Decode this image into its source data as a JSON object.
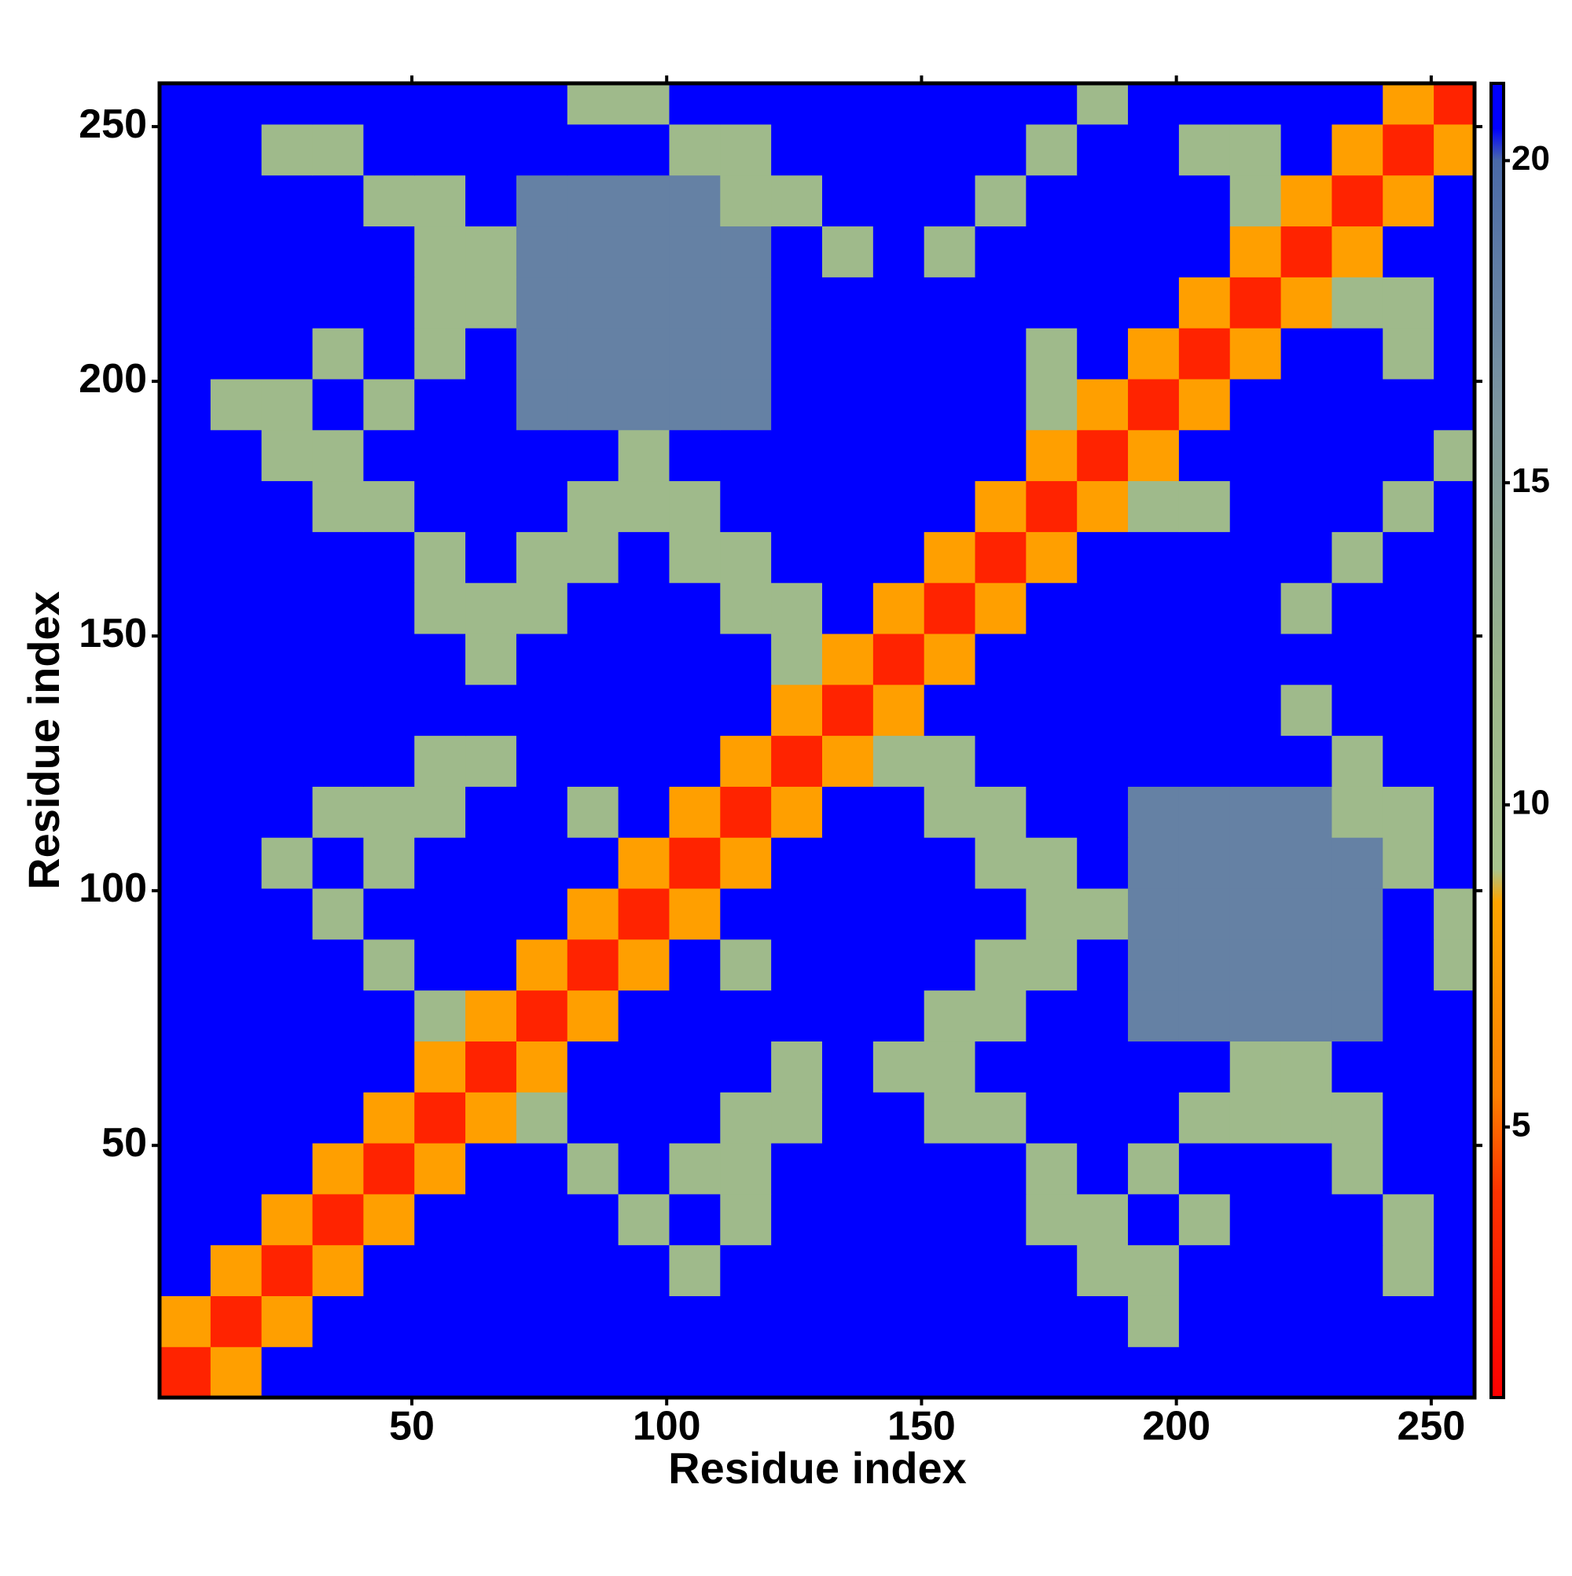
{
  "chart_data": {
    "type": "heatmap",
    "xlabel": "Residue index",
    "ylabel": "Residue index",
    "xbins": [
      0.5,
      10.5,
      20.5,
      30.5,
      40.5,
      50.5,
      60.5,
      70.5,
      80.5,
      90.5,
      100.5,
      110.5,
      120.5,
      130.5,
      140.5,
      150.5,
      160.5,
      170.5,
      180.5,
      190.5,
      200.5,
      210.5,
      220.5,
      230.5,
      240.5,
      250.5,
      258.5
    ],
    "ybins": [
      0.5,
      10.5,
      20.5,
      30.5,
      40.5,
      50.5,
      60.5,
      70.5,
      80.5,
      90.5,
      100.5,
      110.5,
      120.5,
      130.5,
      140.5,
      150.5,
      160.5,
      170.5,
      180.5,
      190.5,
      200.5,
      210.5,
      220.5,
      230.5,
      240.5,
      250.5,
      258.5
    ],
    "values": [
      [
        3,
        8,
        21,
        21,
        21,
        21,
        21,
        21,
        21,
        21,
        21,
        21,
        21,
        21,
        21,
        21,
        21,
        21,
        21,
        21,
        21,
        21,
        21,
        21,
        21,
        21
      ],
      [
        8,
        3,
        8,
        21,
        21,
        21,
        21,
        21,
        21,
        21,
        21,
        21,
        21,
        21,
        21,
        21,
        21,
        21,
        21,
        11,
        21,
        21,
        21,
        21,
        21,
        21
      ],
      [
        21,
        8,
        3,
        8,
        21,
        21,
        21,
        21,
        21,
        21,
        11,
        21,
        21,
        21,
        21,
        21,
        21,
        21,
        11,
        11,
        21,
        21,
        21,
        21,
        11,
        21
      ],
      [
        21,
        21,
        8,
        3,
        8,
        21,
        21,
        21,
        21,
        11,
        21,
        11,
        21,
        21,
        21,
        21,
        21,
        11,
        11,
        21,
        11,
        21,
        21,
        21,
        11,
        21
      ],
      [
        21,
        21,
        21,
        8,
        3,
        8,
        21,
        21,
        11,
        21,
        11,
        11,
        21,
        21,
        21,
        21,
        21,
        11,
        21,
        11,
        21,
        21,
        21,
        11,
        21,
        21
      ],
      [
        21,
        21,
        21,
        21,
        8,
        3,
        8,
        11,
        21,
        21,
        21,
        11,
        11,
        21,
        21,
        11,
        11,
        21,
        21,
        21,
        11,
        11,
        11,
        11,
        21,
        21
      ],
      [
        21,
        21,
        21,
        21,
        21,
        8,
        3,
        8,
        21,
        21,
        21,
        21,
        11,
        21,
        11,
        11,
        21,
        21,
        21,
        21,
        21,
        11,
        11,
        21,
        21,
        21
      ],
      [
        21,
        21,
        21,
        21,
        21,
        11,
        8,
        3,
        8,
        21,
        21,
        21,
        21,
        21,
        21,
        11,
        11,
        21,
        21,
        18,
        18,
        18,
        18,
        18,
        21,
        21
      ],
      [
        21,
        21,
        21,
        21,
        11,
        21,
        21,
        8,
        3,
        8,
        21,
        11,
        21,
        21,
        21,
        21,
        11,
        11,
        21,
        18,
        18,
        18,
        18,
        18,
        21,
        11
      ],
      [
        21,
        21,
        21,
        11,
        21,
        21,
        21,
        21,
        8,
        3,
        8,
        21,
        21,
        21,
        21,
        21,
        21,
        11,
        11,
        18,
        18,
        18,
        18,
        18,
        21,
        11
      ],
      [
        21,
        21,
        11,
        21,
        11,
        21,
        21,
        21,
        21,
        8,
        3,
        8,
        21,
        21,
        21,
        21,
        11,
        11,
        21,
        18,
        18,
        18,
        18,
        18,
        11,
        21
      ],
      [
        21,
        21,
        21,
        11,
        11,
        11,
        21,
        21,
        11,
        21,
        8,
        3,
        8,
        21,
        21,
        11,
        11,
        21,
        21,
        18,
        18,
        18,
        18,
        11,
        11,
        21
      ],
      [
        21,
        21,
        21,
        21,
        21,
        11,
        11,
        21,
        21,
        21,
        21,
        8,
        3,
        8,
        11,
        11,
        21,
        21,
        21,
        21,
        21,
        21,
        21,
        11,
        21,
        21
      ],
      [
        21,
        21,
        21,
        21,
        21,
        21,
        21,
        21,
        21,
        21,
        21,
        21,
        8,
        3,
        8,
        21,
        21,
        21,
        21,
        21,
        21,
        21,
        11,
        21,
        21,
        21
      ],
      [
        21,
        21,
        21,
        21,
        21,
        21,
        11,
        21,
        21,
        21,
        21,
        21,
        11,
        8,
        3,
        8,
        21,
        21,
        21,
        21,
        21,
        21,
        21,
        21,
        21,
        21
      ],
      [
        21,
        21,
        21,
        21,
        21,
        11,
        11,
        11,
        21,
        21,
        21,
        11,
        11,
        21,
        8,
        3,
        8,
        21,
        21,
        21,
        21,
        21,
        11,
        21,
        21,
        21
      ],
      [
        21,
        21,
        21,
        21,
        21,
        11,
        21,
        11,
        11,
        21,
        11,
        11,
        21,
        21,
        21,
        8,
        3,
        8,
        21,
        21,
        21,
        21,
        21,
        11,
        21,
        21
      ],
      [
        21,
        21,
        21,
        11,
        11,
        21,
        21,
        21,
        11,
        11,
        11,
        21,
        21,
        21,
        21,
        21,
        8,
        3,
        8,
        11,
        11,
        21,
        21,
        21,
        11,
        21
      ],
      [
        21,
        21,
        11,
        11,
        21,
        21,
        21,
        21,
        21,
        11,
        21,
        21,
        21,
        21,
        21,
        21,
        21,
        8,
        3,
        8,
        21,
        21,
        21,
        21,
        21,
        11
      ],
      [
        21,
        11,
        11,
        21,
        11,
        21,
        21,
        18,
        18,
        18,
        18,
        18,
        21,
        21,
        21,
        21,
        21,
        11,
        8,
        3,
        8,
        21,
        21,
        21,
        21,
        21
      ],
      [
        21,
        21,
        21,
        11,
        21,
        11,
        21,
        18,
        18,
        18,
        18,
        18,
        21,
        21,
        21,
        21,
        21,
        11,
        21,
        8,
        3,
        8,
        21,
        21,
        11,
        21
      ],
      [
        21,
        21,
        21,
        21,
        21,
        11,
        11,
        18,
        18,
        18,
        18,
        18,
        21,
        21,
        21,
        21,
        21,
        21,
        21,
        21,
        8,
        3,
        8,
        11,
        11,
        21
      ],
      [
        21,
        21,
        21,
        21,
        21,
        11,
        11,
        18,
        18,
        18,
        18,
        18,
        21,
        11,
        21,
        11,
        21,
        21,
        21,
        21,
        21,
        8,
        3,
        8,
        21,
        21
      ],
      [
        21,
        21,
        21,
        21,
        11,
        11,
        21,
        18,
        18,
        18,
        18,
        11,
        11,
        21,
        21,
        21,
        11,
        21,
        21,
        21,
        21,
        11,
        8,
        3,
        8,
        21
      ],
      [
        21,
        21,
        11,
        11,
        21,
        21,
        21,
        21,
        21,
        21,
        11,
        11,
        21,
        21,
        21,
        21,
        21,
        11,
        21,
        21,
        11,
        11,
        21,
        8,
        3,
        8
      ],
      [
        21,
        21,
        21,
        21,
        21,
        21,
        21,
        21,
        11,
        11,
        21,
        21,
        21,
        21,
        21,
        21,
        21,
        21,
        11,
        21,
        21,
        21,
        21,
        21,
        8,
        3
      ]
    ],
    "xlim": [
      0.5,
      258.5
    ],
    "ylim": [
      0.5,
      258.5
    ],
    "xticks": [
      50,
      100,
      150,
      200,
      250
    ],
    "yticks": [
      50,
      100,
      150,
      200,
      250
    ],
    "zlim": [
      0.8,
      21.2
    ],
    "zticks": [
      5,
      10,
      15,
      20
    ],
    "colorscale": [
      [
        0.8,
        "#ff0000"
      ],
      [
        4,
        "#ff3300"
      ],
      [
        5.5,
        "#ff8000"
      ],
      [
        8.5,
        "#ffa500"
      ],
      [
        9,
        "#a8c48e"
      ],
      [
        12,
        "#9bb58a"
      ],
      [
        16,
        "#7f98a0"
      ],
      [
        20,
        "#4a6aa8"
      ],
      [
        20.5,
        "#0000ff"
      ],
      [
        21.2,
        "#0000ff"
      ]
    ]
  }
}
